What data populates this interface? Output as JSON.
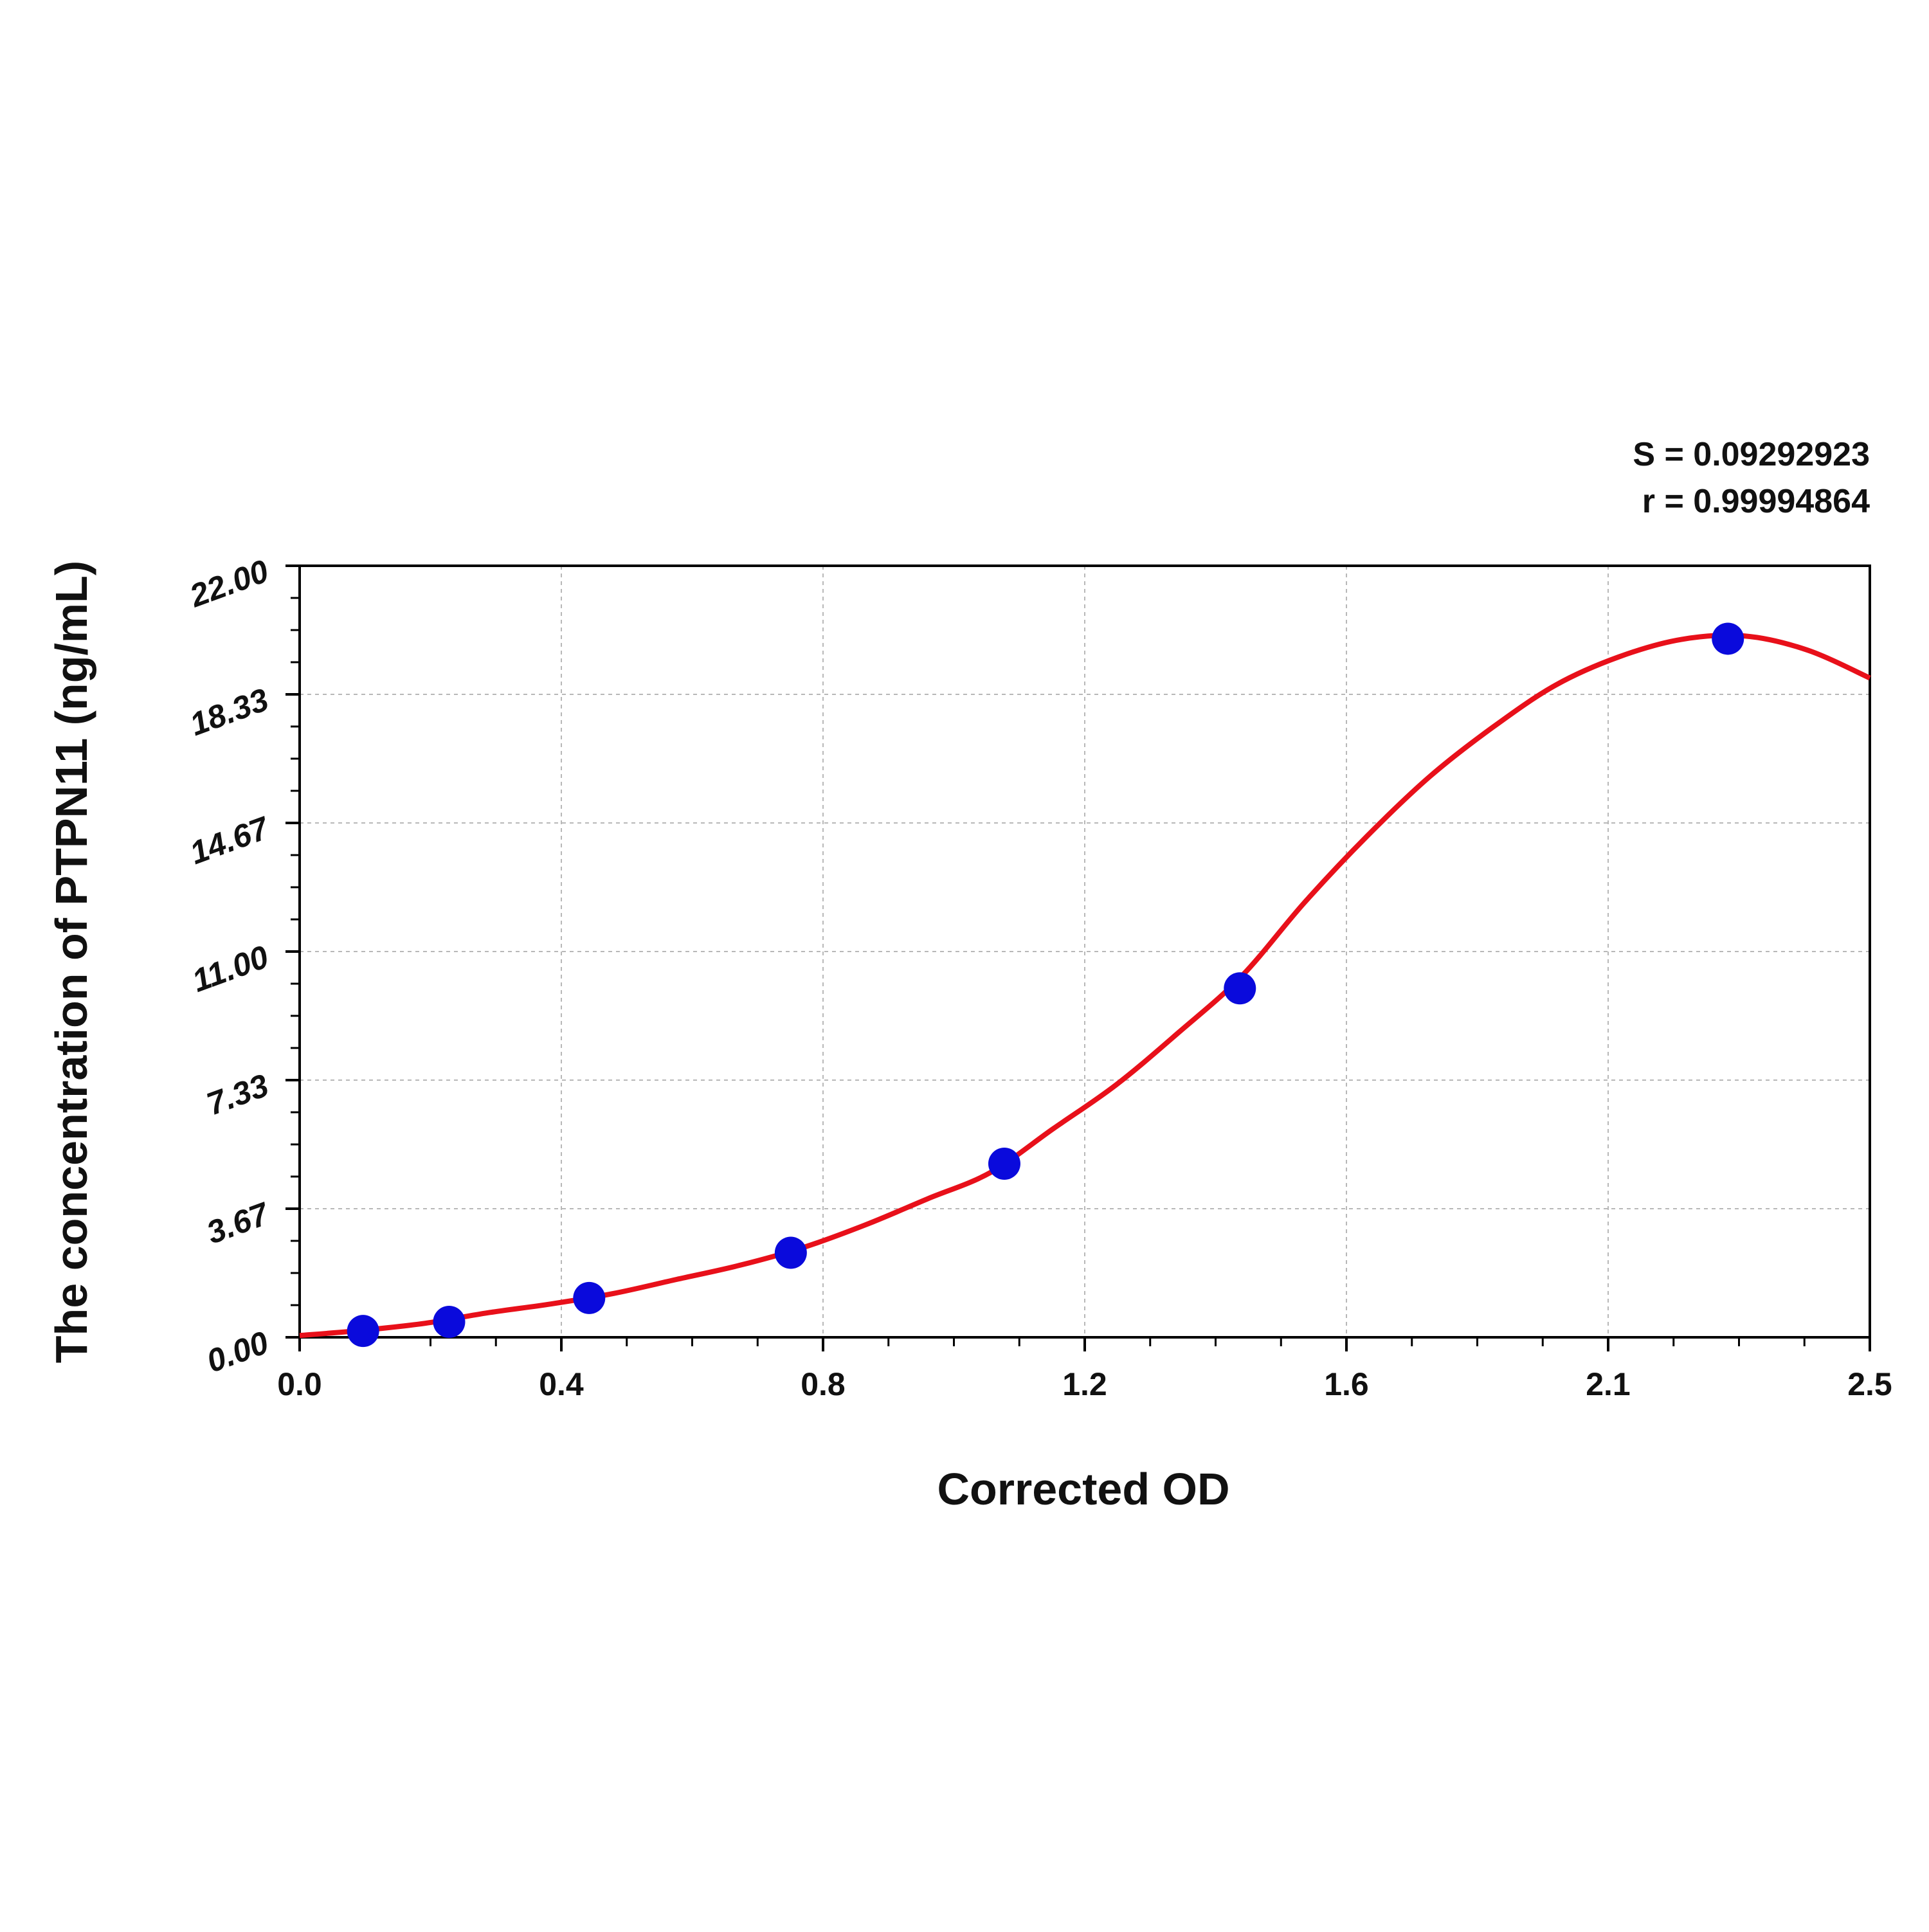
{
  "chart_data": {
    "type": "scatter",
    "title": "",
    "xlabel": "Corrected OD",
    "ylabel": "The concentration of PTPN11 (ng/mL)",
    "xlim": [
      0,
      2.5
    ],
    "ylim": [
      0,
      22
    ],
    "x_tick_labels": [
      "0.0",
      "0.4",
      "0.8",
      "1.2",
      "1.6",
      "2.1",
      "2.5"
    ],
    "y_tick_labels": [
      "0.00",
      "3.67",
      "7.33",
      "11.00",
      "14.67",
      "18.33",
      "22.00"
    ],
    "grid": true,
    "stats": {
      "s_text": "S = 0.09292923",
      "r_text": "r = 0.99994864"
    },
    "series": [
      {
        "kind": "points",
        "color": "#0a0adc",
        "x": [
          0.101,
          0.238,
          0.461,
          0.782,
          1.122,
          1.497,
          2.274
        ],
        "y": [
          0.18,
          0.44,
          1.12,
          2.41,
          4.95,
          9.95,
          19.92
        ]
      },
      {
        "kind": "fitted-curve",
        "color": "#e8101a",
        "x": [
          0.0,
          0.1,
          0.2,
          0.3,
          0.4,
          0.5,
          0.6,
          0.7,
          0.8,
          0.9,
          1.0,
          1.1,
          1.2,
          1.3,
          1.4,
          1.5,
          1.6,
          1.7,
          1.8,
          1.9,
          2.0,
          2.1,
          2.2,
          2.3,
          2.4,
          2.5
        ],
        "y": [
          0.05,
          0.2,
          0.4,
          0.7,
          0.95,
          1.25,
          1.65,
          2.05,
          2.55,
          3.2,
          3.95,
          4.7,
          5.95,
          7.2,
          8.7,
          10.3,
          12.4,
          14.3,
          16.0,
          17.4,
          18.6,
          19.4,
          19.9,
          20.0,
          19.6,
          18.8
        ]
      }
    ]
  }
}
